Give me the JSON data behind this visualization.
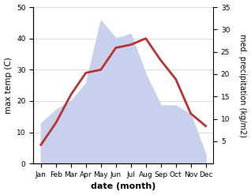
{
  "months": [
    "Jan",
    "Feb",
    "Mar",
    "Apr",
    "May",
    "Jun",
    "Jul",
    "Aug",
    "Sep",
    "Oct",
    "Nov",
    "Dec"
  ],
  "month_indices": [
    1,
    2,
    3,
    4,
    5,
    6,
    7,
    8,
    9,
    10,
    11,
    12
  ],
  "temp": [
    6,
    13,
    22,
    29,
    30,
    37,
    38,
    40,
    33,
    27,
    16,
    12
  ],
  "precip_right": [
    9,
    12,
    14,
    18,
    32,
    28,
    29,
    20,
    13,
    13,
    11,
    2
  ],
  "temp_color": "#b83232",
  "precip_fill_color": "#c8d0ee",
  "left_ylim": [
    0,
    50
  ],
  "right_ylim": [
    0,
    35
  ],
  "left_yticks": [
    0,
    10,
    20,
    30,
    40,
    50
  ],
  "right_yticks": [
    5,
    10,
    15,
    20,
    25,
    30,
    35
  ],
  "xlabel": "date (month)",
  "ylabel_left": "max temp (C)",
  "ylabel_right": "med. precipitation (kg/m2)",
  "line_width": 2.0,
  "bg_color": "#ffffff"
}
